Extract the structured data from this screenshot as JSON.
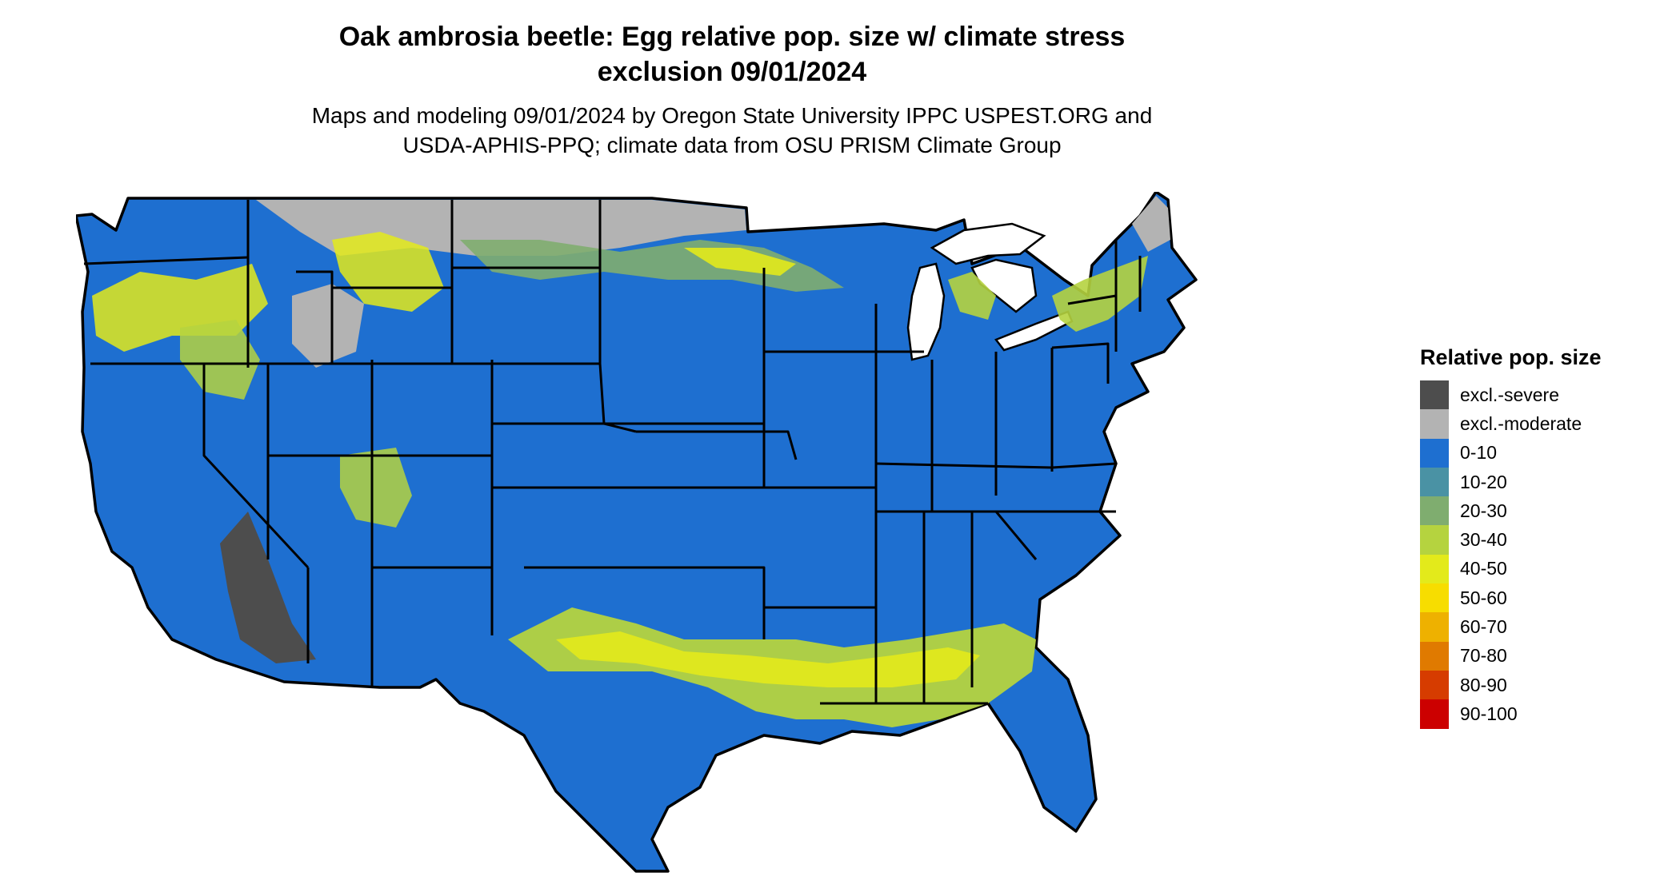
{
  "title_line1": "Oak ambrosia beetle: Egg relative pop. size w/ climate stress",
  "title_line2": "exclusion 09/01/2024",
  "subtitle_line1": "Maps and modeling 09/01/2024 by Oregon State University IPPC USPEST.ORG and",
  "subtitle_line2": "USDA-APHIS-PPQ; climate data from OSU PRISM Climate Group",
  "legend": {
    "title": "Relative pop. size",
    "items": [
      {
        "label": "excl.-severe",
        "color": "#4d4d4d"
      },
      {
        "label": "excl.-moderate",
        "color": "#b3b3b3"
      },
      {
        "label": "0-10",
        "color": "#1e6fd0"
      },
      {
        "label": "10-20",
        "color": "#4a92a4"
      },
      {
        "label": "20-30",
        "color": "#7fad6f"
      },
      {
        "label": "30-40",
        "color": "#b5d33f"
      },
      {
        "label": "40-50",
        "color": "#e3ea1b"
      },
      {
        "label": "50-60",
        "color": "#f7dd00"
      },
      {
        "label": "60-70",
        "color": "#eeb100"
      },
      {
        "label": "70-80",
        "color": "#e07a00"
      },
      {
        "label": "80-90",
        "color": "#d63c00"
      },
      {
        "label": "90-100",
        "color": "#cc0000"
      }
    ]
  }
}
